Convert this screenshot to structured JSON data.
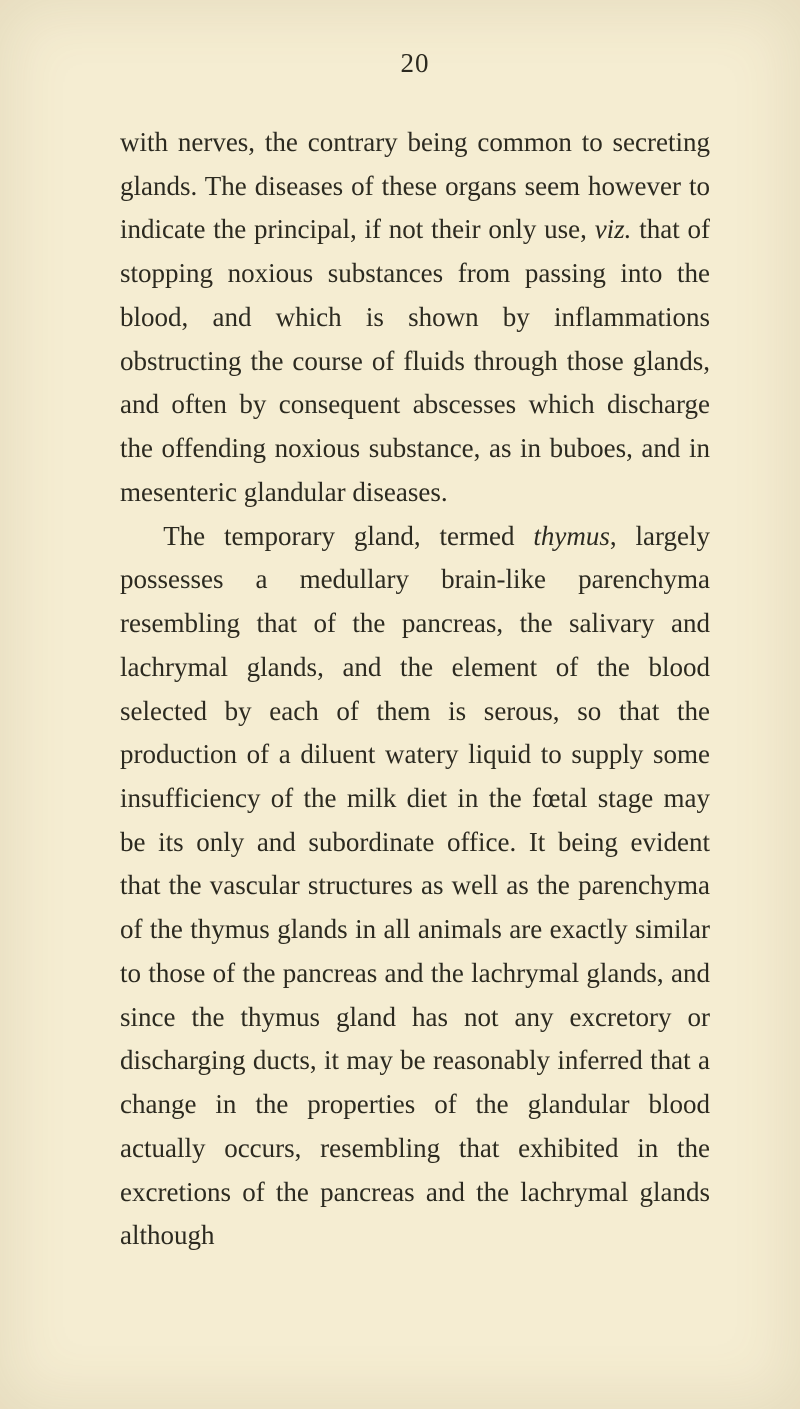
{
  "page": {
    "number": "20",
    "background_color": "#f5edd2",
    "text_color": "#2c2a20",
    "font_family": "Times New Roman",
    "body_fontsize_pt": 20,
    "line_height": 1.62,
    "paragraphs": [
      {
        "indent": false,
        "segments": [
          {
            "text": "with nerves, the contrary being common to secreting glands. The diseases of these organs seem however to indicate the principal, if not their only use, ",
            "italic": false
          },
          {
            "text": "viz.",
            "italic": true
          },
          {
            "text": " that of stopping noxious substances from passing into the blood, and which is shown by inflammations obstructing the course of fluids through those glands, and often by consequent abscesses which discharge the offending noxious substance, as in buboes, and in mesenteric glandular diseases.",
            "italic": false
          }
        ]
      },
      {
        "indent": true,
        "segments": [
          {
            "text": "The temporary gland, termed ",
            "italic": false
          },
          {
            "text": "thymus",
            "italic": true
          },
          {
            "text": ", largely possesses a medullary brain-like parenchyma resembling that of the pancreas, the salivary and lachrymal glands, and the element of the blood selected by each of them is serous, so that the production of a diluent watery liquid to supply some insufficiency of the milk diet in the fœtal stage may be its only and subordinate office. It being evident that the vascular structures as well as the parenchyma of the thymus glands in all animals are exactly similar to those of the pancreas and the lachrymal glands, and since the thymus gland has not any excretory or discharging ducts, it may be reasonably inferred that a change in the properties of the glandular blood actually occurs, resembling that exhibited in the excretions of the pancreas and the lachrymal glands although",
            "italic": false
          }
        ]
      }
    ]
  }
}
